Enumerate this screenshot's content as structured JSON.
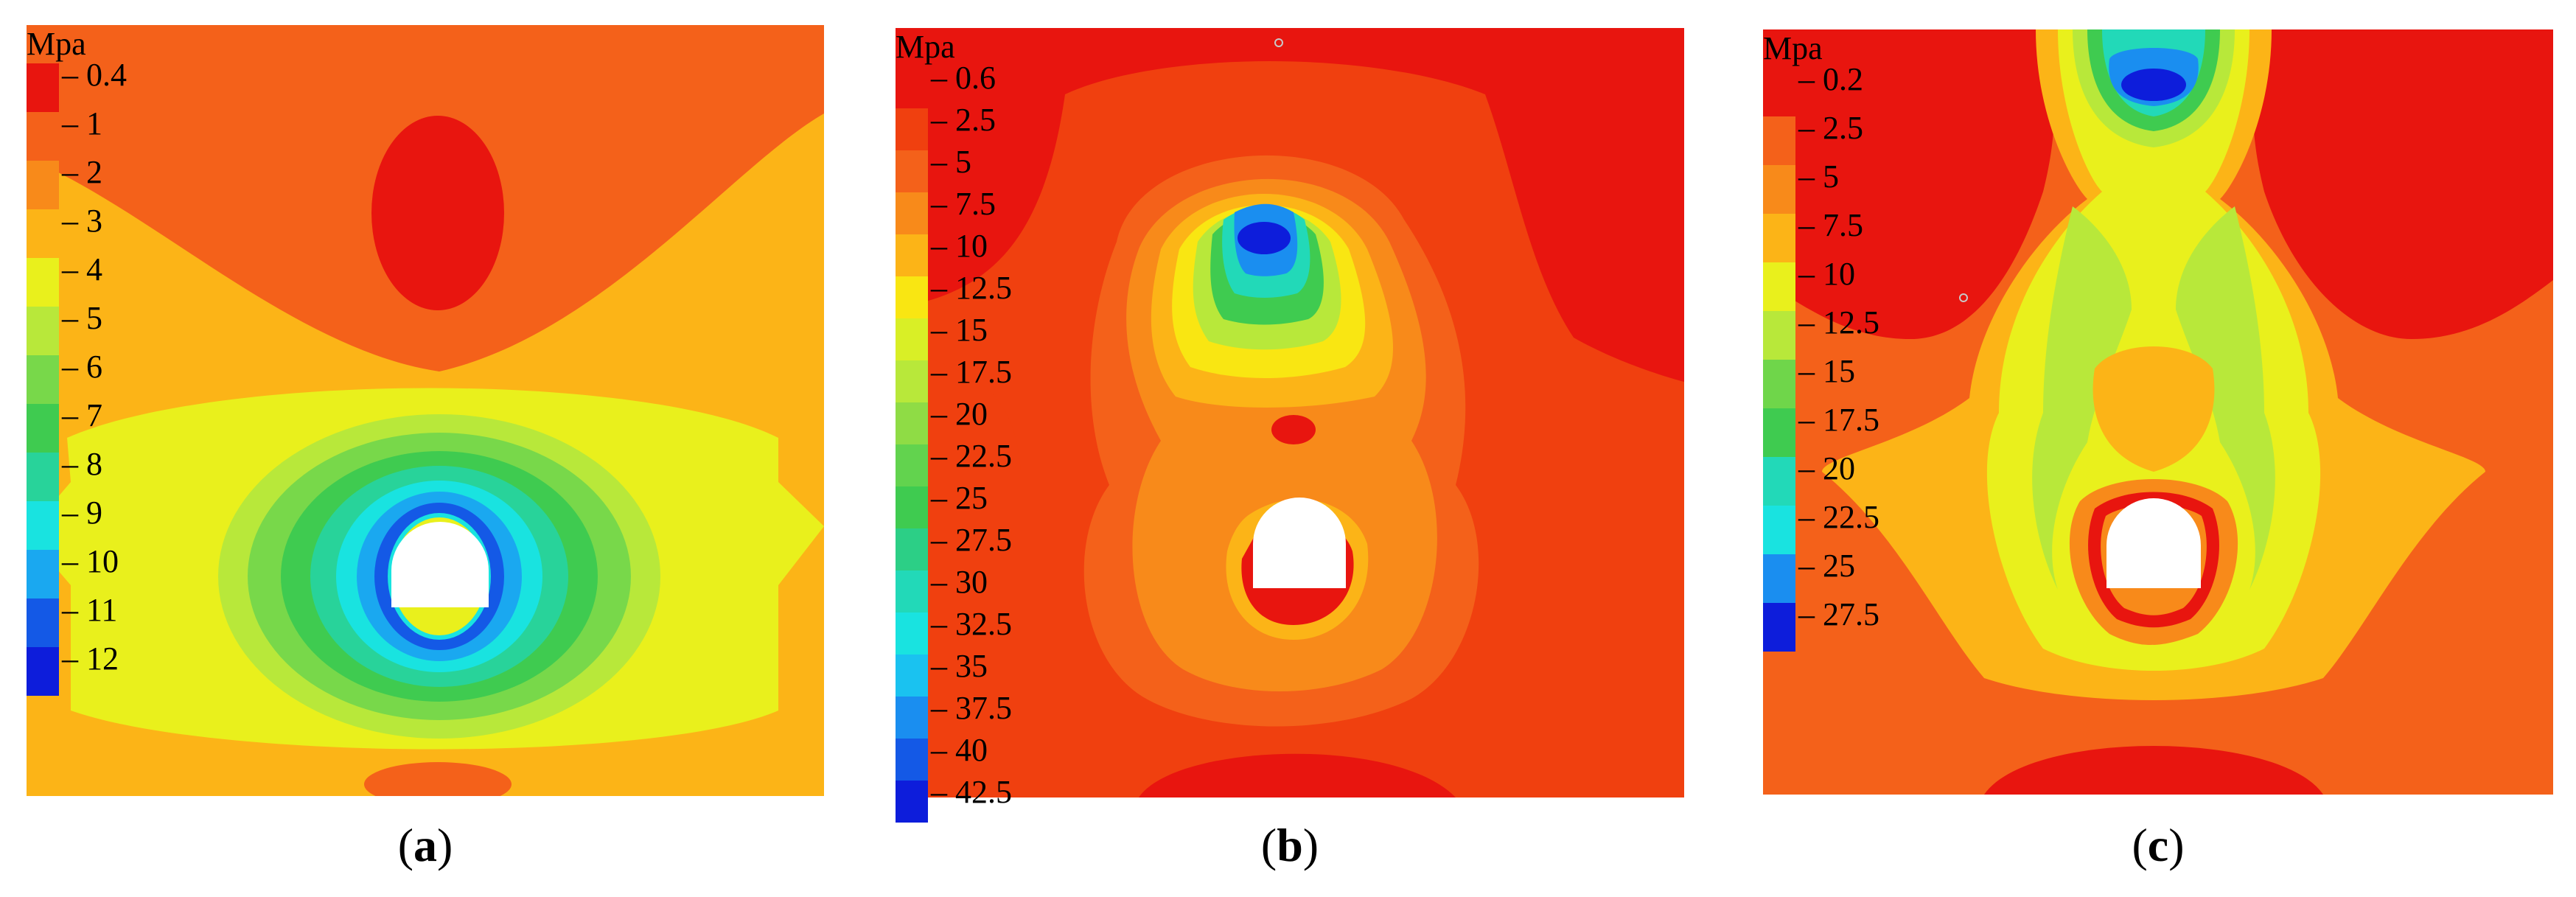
{
  "panels": [
    {
      "caption_open": "(",
      "caption_letter": "a",
      "caption_close": ")",
      "unit": "Mpa",
      "levels": [
        "0.4",
        "1",
        "2",
        "3",
        "4",
        "5",
        "6",
        "7",
        "8",
        "9",
        "10",
        "11",
        "12"
      ],
      "colors": [
        "#e8150f",
        "#f4611a",
        "#f88a1a",
        "#fcb417",
        "#e9f01c",
        "#b8e83a",
        "#78d84a",
        "#3fcb50",
        "#28d39a",
        "#19e3e0",
        "#1aa8f0",
        "#1459e6",
        "#0d1ddb"
      ]
    },
    {
      "caption_open": "(",
      "caption_letter": "b",
      "caption_close": ")",
      "unit": "Mpa",
      "levels": [
        "0.6",
        "2.5",
        "5",
        "7.5",
        "10",
        "12.5",
        "15",
        "17.5",
        "20",
        "22.5",
        "25",
        "27.5",
        "30",
        "32.5",
        "35",
        "37.5",
        "40",
        "42.5"
      ],
      "colors": [
        "#e8150f",
        "#f0400f",
        "#f4611a",
        "#f88a1a",
        "#fcb417",
        "#f9e612",
        "#d9ef26",
        "#b8e83a",
        "#8fdc45",
        "#62d34e",
        "#3fcb50",
        "#2ccf86",
        "#22d9b8",
        "#19e3e0",
        "#1ac2f0",
        "#1a8ef0",
        "#1459e6",
        "#0d1ddb"
      ]
    },
    {
      "caption_open": "(",
      "caption_letter": "c",
      "caption_close": ")",
      "unit": "Mpa",
      "levels": [
        "0.2",
        "2.5",
        "5",
        "7.5",
        "10",
        "12.5",
        "15",
        "17.5",
        "20",
        "22.5",
        "25",
        "27.5"
      ],
      "colors": [
        "#e8150f",
        "#f4611a",
        "#f88a1a",
        "#fcb417",
        "#e9f01c",
        "#b8e83a",
        "#6fd64a",
        "#3fcb50",
        "#22d9b8",
        "#19e3e0",
        "#1a8ef0",
        "#0d1ddb"
      ]
    }
  ]
}
